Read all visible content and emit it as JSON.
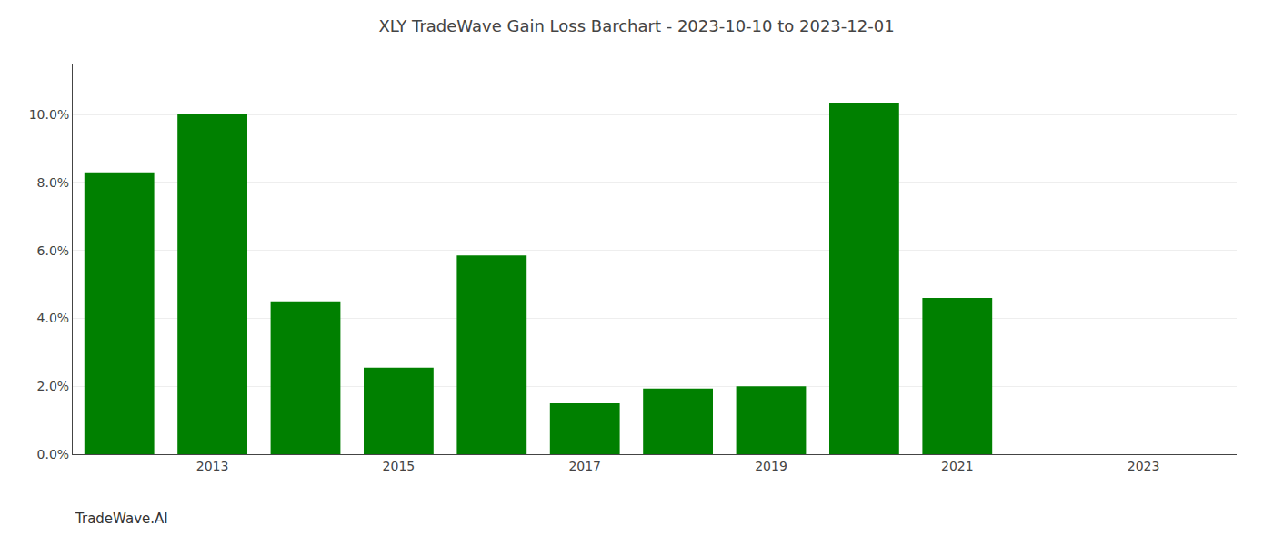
{
  "chart_data": {
    "type": "bar",
    "title": "XLY TradeWave Gain Loss Barchart - 2023-10-10 to 2023-12-01",
    "annotations": [
      "TradeWave.AI"
    ],
    "x": [
      2012,
      2013,
      2014,
      2015,
      2016,
      2017,
      2018,
      2019,
      2020,
      2021
    ],
    "values": [
      0.083,
      0.1003,
      0.045,
      0.0255,
      0.0585,
      0.015,
      0.0193,
      0.02,
      0.1035,
      0.046
    ],
    "color": "#008000",
    "xlim": [
      2011.5,
      2024.0
    ],
    "xticks": [
      2013,
      2015,
      2017,
      2019,
      2021,
      2023
    ],
    "ylim": [
      0,
      0.115
    ],
    "yticks": [
      {
        "value": 0.0,
        "label": "0.0%"
      },
      {
        "value": 0.02,
        "label": "2.0%"
      },
      {
        "value": 0.04,
        "label": "4.0%"
      },
      {
        "value": 0.06,
        "label": "6.0%"
      },
      {
        "value": 0.08,
        "label": "8.0%"
      },
      {
        "value": 0.1,
        "label": "10.0%"
      }
    ],
    "grid": true
  }
}
